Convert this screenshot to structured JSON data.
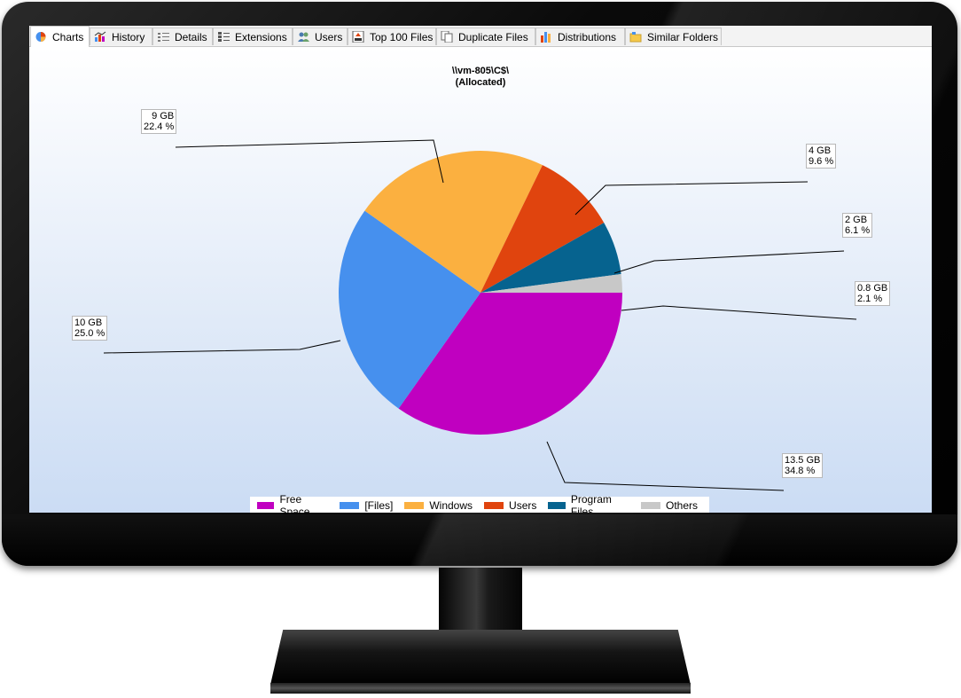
{
  "tabs": [
    {
      "label": "Charts",
      "icon": "pie-chart-icon",
      "active": true
    },
    {
      "label": "History",
      "icon": "history-chart-icon",
      "active": false
    },
    {
      "label": "Details",
      "icon": "details-list-icon",
      "active": false
    },
    {
      "label": "Extensions",
      "icon": "extensions-list-icon",
      "active": false
    },
    {
      "label": "Users",
      "icon": "users-icon",
      "active": false
    },
    {
      "label": "Top 100 Files",
      "icon": "top-100-icon",
      "active": false
    },
    {
      "label": "Duplicate Files",
      "icon": "duplicate-files-icon",
      "active": false
    },
    {
      "label": "Distributions",
      "icon": "distributions-icon",
      "active": false
    },
    {
      "label": "Similar Folders",
      "icon": "folder-icon",
      "active": false
    }
  ],
  "chart_data": {
    "type": "pie",
    "title": "\\\\vm-805\\C$\\",
    "subtitle": "(Allocated)",
    "legend_position": "bottom",
    "slices": [
      {
        "name": "Free Space",
        "size": "13.5 GB",
        "percent": 34.8,
        "percent_label": "34.8 %",
        "color": "#c000c0"
      },
      {
        "name": "[Files]",
        "size": "10 GB",
        "percent": 25.0,
        "percent_label": "25.0 %",
        "color": "#4690ee"
      },
      {
        "name": "Windows",
        "size": "9 GB",
        "percent": 22.4,
        "percent_label": "22.4 %",
        "color": "#fbb040"
      },
      {
        "name": "Users",
        "size": "4 GB",
        "percent": 9.6,
        "percent_label": "9.6 %",
        "color": "#e0440e"
      },
      {
        "name": "Program Files",
        "size": "2 GB",
        "percent": 6.1,
        "percent_label": "6.1 %",
        "color": "#06638f"
      },
      {
        "name": "Others",
        "size": "0.8 GB",
        "percent": 2.1,
        "percent_label": "2.1 %",
        "color": "#c8c8c8"
      }
    ]
  }
}
